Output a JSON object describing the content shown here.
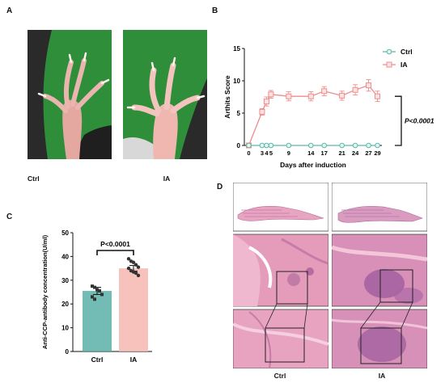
{
  "panels": {
    "a": "A",
    "b": "B",
    "c": "C",
    "d": "D"
  },
  "panel_a": {
    "left_label": "Ctrl",
    "right_label": "IA"
  },
  "panel_d": {
    "left_label": "Ctrl",
    "right_label": "IA"
  },
  "colors": {
    "ctrl_line": "#5bb8ab",
    "ia_line": "#f08c8c",
    "ctrl_bar": "#5ab0a8",
    "ia_bar": "#f6b7b0",
    "green_bg": "#2f8e3a",
    "he_pink": "#e79cb8",
    "he_purple": "#9b5a9c"
  },
  "chart_data": [
    {
      "type": "line",
      "panel": "B",
      "ylabel": "Arthits Score",
      "xlabel": "Days after induction",
      "x": [
        0,
        3,
        4,
        5,
        9,
        14,
        17,
        21,
        24,
        27,
        29
      ],
      "x_ticks": [
        "0",
        "3",
        "4",
        "5",
        "9",
        "14",
        "17",
        "21",
        "24",
        "27",
        "29"
      ],
      "ylim": [
        0,
        15
      ],
      "y_ticks": [
        0,
        5,
        10,
        15
      ],
      "series": [
        {
          "name": "Ctrl",
          "values": [
            0,
            0,
            0,
            0,
            0,
            0,
            0,
            0,
            0,
            0,
            0
          ],
          "errors": [
            0,
            0,
            0,
            0,
            0,
            0,
            0,
            0,
            0,
            0,
            0
          ]
        },
        {
          "name": "IA",
          "values": [
            0,
            5.2,
            6.8,
            7.9,
            7.6,
            7.6,
            8.4,
            7.7,
            8.6,
            9.3,
            7.6
          ],
          "errors": [
            0,
            0.5,
            0.7,
            0.6,
            0.7,
            0.7,
            0.7,
            0.7,
            0.8,
            0.9,
            0.8
          ]
        }
      ],
      "annotation": "P<0.0001",
      "legend": "top-right"
    },
    {
      "type": "bar",
      "panel": "C",
      "ylabel": "Anti-CCP-antibody concentration(U/ml)",
      "categories": [
        "Ctrl",
        "IA"
      ],
      "values": [
        25.5,
        35
      ],
      "errors": [
        1.5,
        1.2
      ],
      "ylim": [
        0,
        50
      ],
      "y_ticks": [
        0,
        10,
        20,
        30,
        40,
        50
      ],
      "points": {
        "Ctrl": [
          27.5,
          27,
          26,
          25.5,
          24,
          23,
          22
        ],
        "IA": [
          39,
          38,
          37.5,
          36.5,
          35.5,
          35,
          34,
          33.5,
          33,
          32
        ]
      },
      "annotation": "P<0.0001"
    }
  ]
}
